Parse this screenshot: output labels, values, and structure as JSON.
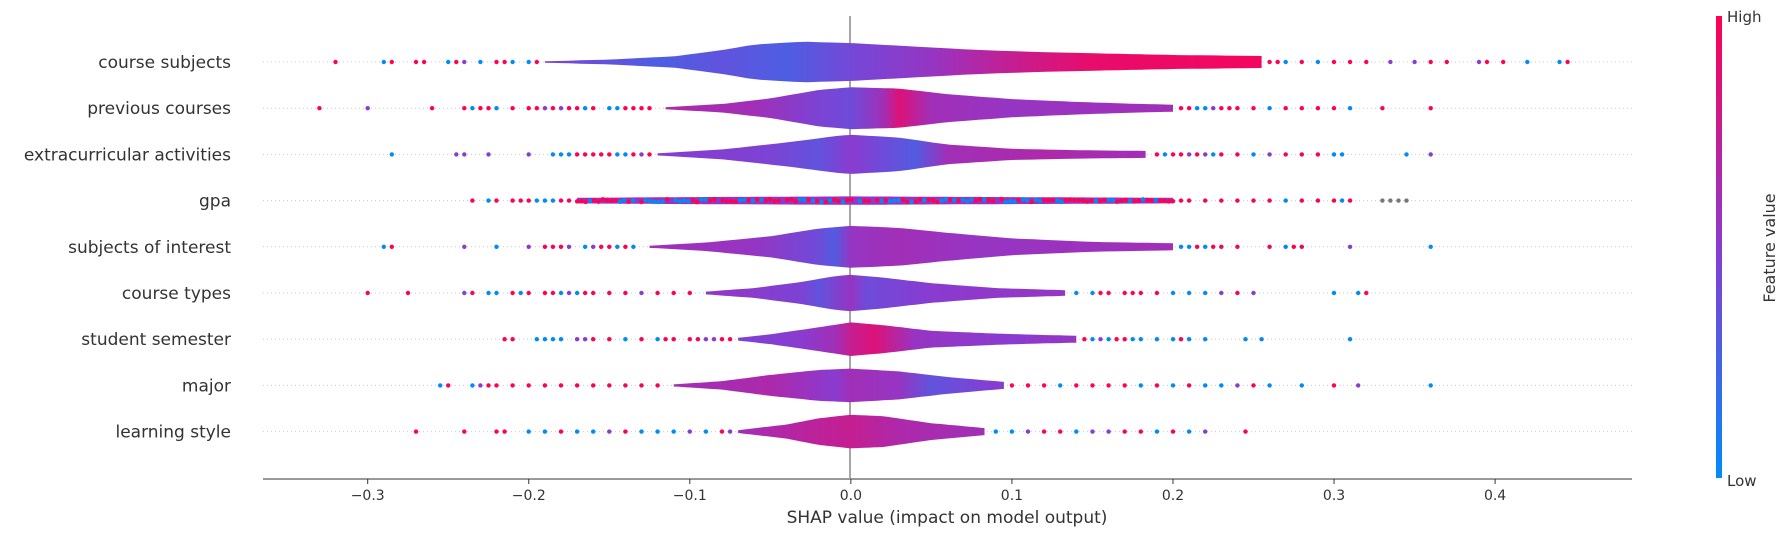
{
  "chart_data": {
    "type": "violin-summary",
    "title": "",
    "xlabel": "SHAP value (impact on model output)",
    "ylabel": "",
    "xlim": [
      -0.365,
      0.485
    ],
    "x_ticks": [
      {
        "value": -0.3,
        "label": "−0.3"
      },
      {
        "value": -0.2,
        "label": "−0.2"
      },
      {
        "value": -0.1,
        "label": "−0.1"
      },
      {
        "value": 0.0,
        "label": "0.0"
      },
      {
        "value": 0.1,
        "label": "0.1"
      },
      {
        "value": 0.2,
        "label": "0.2"
      },
      {
        "value": 0.3,
        "label": "0.3"
      },
      {
        "value": 0.4,
        "label": "0.4"
      }
    ],
    "colorbar": {
      "label": "Feature value",
      "high_label": "High",
      "low_label": "Low",
      "low_color": "#008bfb",
      "high_color": "#ff0052"
    },
    "features": [
      {
        "name": "course subjects",
        "min": -0.32,
        "max": 0.445,
        "violin_start": -0.19,
        "violin_end": 0.255,
        "density": [
          [
            -0.19,
            0.01
          ],
          [
            -0.15,
            0.035
          ],
          [
            -0.11,
            0.08
          ],
          [
            -0.08,
            0.17
          ],
          [
            -0.06,
            0.25
          ],
          [
            -0.03,
            0.29
          ],
          [
            0.0,
            0.27
          ],
          [
            0.04,
            0.22
          ],
          [
            0.08,
            0.17
          ],
          [
            0.12,
            0.14
          ],
          [
            0.16,
            0.12
          ],
          [
            0.2,
            0.1
          ],
          [
            0.24,
            0.09
          ],
          [
            0.255,
            0.085
          ]
        ],
        "color_profile": [
          [
            -0.19,
            0.45
          ],
          [
            -0.12,
            0.28
          ],
          [
            -0.08,
            0.35
          ],
          [
            -0.04,
            0.28
          ],
          [
            0.0,
            0.42
          ],
          [
            0.05,
            0.55
          ],
          [
            0.1,
            0.75
          ],
          [
            0.15,
            0.9
          ],
          [
            0.25,
            0.95
          ]
        ],
        "outliers": [
          -0.32,
          -0.29,
          -0.285,
          -0.27,
          -0.265,
          -0.25,
          -0.245,
          -0.24,
          -0.23,
          -0.22,
          -0.215,
          -0.21,
          -0.2,
          -0.195,
          0.26,
          0.265,
          0.27,
          0.28,
          0.29,
          0.3,
          0.31,
          0.32,
          0.335,
          0.35,
          0.36,
          0.37,
          0.39,
          0.395,
          0.405,
          0.42,
          0.44,
          0.445
        ]
      },
      {
        "name": "previous courses",
        "min": -0.33,
        "max": 0.36,
        "violin_start": -0.115,
        "violin_end": 0.2,
        "density": [
          [
            -0.115,
            0.015
          ],
          [
            -0.08,
            0.06
          ],
          [
            -0.05,
            0.14
          ],
          [
            -0.02,
            0.26
          ],
          [
            0.0,
            0.3
          ],
          [
            0.03,
            0.28
          ],
          [
            0.06,
            0.2
          ],
          [
            0.1,
            0.13
          ],
          [
            0.14,
            0.09
          ],
          [
            0.18,
            0.06
          ],
          [
            0.2,
            0.05
          ]
        ],
        "color_profile": [
          [
            -0.115,
            0.65
          ],
          [
            -0.06,
            0.6
          ],
          [
            -0.02,
            0.45
          ],
          [
            0.0,
            0.4
          ],
          [
            0.02,
            0.6
          ],
          [
            0.03,
            0.85
          ],
          [
            0.05,
            0.6
          ],
          [
            0.1,
            0.55
          ],
          [
            0.2,
            0.6
          ]
        ],
        "outliers": [
          -0.33,
          -0.3,
          -0.26,
          -0.24,
          -0.235,
          -0.23,
          -0.225,
          -0.22,
          -0.21,
          -0.2,
          -0.195,
          -0.19,
          -0.185,
          -0.18,
          -0.175,
          -0.17,
          -0.165,
          -0.16,
          -0.15,
          -0.145,
          -0.14,
          -0.135,
          -0.13,
          -0.125,
          0.205,
          0.21,
          0.215,
          0.22,
          0.225,
          0.23,
          0.235,
          0.24,
          0.25,
          0.26,
          0.27,
          0.28,
          0.29,
          0.3,
          0.31,
          0.33,
          0.36
        ]
      },
      {
        "name": "extracurricular activities",
        "min": -0.285,
        "max": 0.36,
        "violin_start": -0.12,
        "violin_end": 0.183,
        "density": [
          [
            -0.12,
            0.015
          ],
          [
            -0.08,
            0.07
          ],
          [
            -0.04,
            0.17
          ],
          [
            -0.01,
            0.26
          ],
          [
            0.0,
            0.28
          ],
          [
            0.03,
            0.24
          ],
          [
            0.06,
            0.14
          ],
          [
            0.1,
            0.08
          ],
          [
            0.14,
            0.06
          ],
          [
            0.183,
            0.05
          ]
        ],
        "color_profile": [
          [
            -0.12,
            0.5
          ],
          [
            -0.05,
            0.45
          ],
          [
            -0.02,
            0.35
          ],
          [
            0.0,
            0.5
          ],
          [
            0.02,
            0.4
          ],
          [
            0.04,
            0.3
          ],
          [
            0.06,
            0.6
          ],
          [
            0.12,
            0.65
          ],
          [
            0.183,
            0.6
          ]
        ],
        "outliers": [
          -0.285,
          -0.245,
          -0.24,
          -0.225,
          -0.2,
          -0.185,
          -0.18,
          -0.175,
          -0.17,
          -0.165,
          -0.16,
          -0.155,
          -0.15,
          -0.145,
          -0.14,
          -0.135,
          -0.13,
          -0.125,
          0.19,
          0.195,
          0.2,
          0.205,
          0.21,
          0.215,
          0.22,
          0.225,
          0.23,
          0.24,
          0.25,
          0.26,
          0.27,
          0.28,
          0.29,
          0.3,
          0.305,
          0.345,
          0.36
        ]
      },
      {
        "name": "gpa",
        "min": -0.235,
        "max": 0.345,
        "violin_start": -0.17,
        "violin_end": 0.2,
        "density": [
          [
            -0.17,
            0.04
          ],
          [
            -0.1,
            0.05
          ],
          [
            0.0,
            0.06
          ],
          [
            0.1,
            0.05
          ],
          [
            0.2,
            0.04
          ]
        ],
        "color_profile": [
          [
            -0.17,
            0.6
          ],
          [
            0.0,
            0.55
          ],
          [
            0.2,
            0.6
          ]
        ],
        "outliers": [
          -0.235,
          -0.225,
          -0.22,
          -0.21,
          -0.205,
          -0.2,
          -0.195,
          -0.19,
          -0.185,
          -0.18,
          -0.175,
          0.205,
          0.21,
          0.22,
          0.23,
          0.24,
          0.25,
          0.26,
          0.27,
          0.28,
          0.29,
          0.3,
          0.305,
          0.31,
          0.33,
          0.335,
          0.34,
          0.345
        ]
      },
      {
        "name": "subjects of interest",
        "min": -0.29,
        "max": 0.36,
        "violin_start": -0.125,
        "violin_end": 0.2,
        "density": [
          [
            -0.125,
            0.015
          ],
          [
            -0.09,
            0.06
          ],
          [
            -0.05,
            0.15
          ],
          [
            -0.02,
            0.26
          ],
          [
            0.0,
            0.3
          ],
          [
            0.03,
            0.27
          ],
          [
            0.06,
            0.2
          ],
          [
            0.1,
            0.12
          ],
          [
            0.15,
            0.07
          ],
          [
            0.2,
            0.05
          ]
        ],
        "color_profile": [
          [
            -0.125,
            0.6
          ],
          [
            -0.06,
            0.55
          ],
          [
            -0.02,
            0.4
          ],
          [
            -0.01,
            0.3
          ],
          [
            0.0,
            0.55
          ],
          [
            0.03,
            0.6
          ],
          [
            0.08,
            0.55
          ],
          [
            0.2,
            0.6
          ]
        ],
        "outliers": [
          -0.29,
          -0.285,
          -0.24,
          -0.22,
          -0.2,
          -0.19,
          -0.185,
          -0.18,
          -0.175,
          -0.165,
          -0.16,
          -0.155,
          -0.15,
          -0.145,
          -0.14,
          -0.135,
          0.205,
          0.21,
          0.215,
          0.22,
          0.225,
          0.23,
          0.24,
          0.26,
          0.27,
          0.275,
          0.28,
          0.31,
          0.36
        ]
      },
      {
        "name": "course types",
        "min": -0.3,
        "max": 0.32,
        "violin_start": -0.09,
        "violin_end": 0.133,
        "density": [
          [
            -0.09,
            0.02
          ],
          [
            -0.06,
            0.07
          ],
          [
            -0.03,
            0.16
          ],
          [
            -0.01,
            0.24
          ],
          [
            0.0,
            0.26
          ],
          [
            0.02,
            0.22
          ],
          [
            0.05,
            0.14
          ],
          [
            0.09,
            0.07
          ],
          [
            0.133,
            0.04
          ]
        ],
        "color_profile": [
          [
            -0.09,
            0.55
          ],
          [
            -0.03,
            0.45
          ],
          [
            -0.02,
            0.35
          ],
          [
            0.0,
            0.55
          ],
          [
            0.01,
            0.4
          ],
          [
            0.05,
            0.5
          ],
          [
            0.133,
            0.55
          ]
        ],
        "outliers": [
          -0.3,
          -0.275,
          -0.24,
          -0.235,
          -0.225,
          -0.22,
          -0.21,
          -0.205,
          -0.2,
          -0.19,
          -0.185,
          -0.18,
          -0.175,
          -0.17,
          -0.165,
          -0.16,
          -0.15,
          -0.14,
          -0.13,
          -0.12,
          -0.11,
          -0.1,
          0.14,
          0.15,
          0.155,
          0.16,
          0.17,
          0.175,
          0.18,
          0.19,
          0.2,
          0.21,
          0.22,
          0.23,
          0.24,
          0.25,
          0.3,
          0.315,
          0.32
        ]
      },
      {
        "name": "student semester",
        "min": -0.215,
        "max": 0.31,
        "violin_start": -0.07,
        "violin_end": 0.14,
        "density": [
          [
            -0.07,
            0.02
          ],
          [
            -0.05,
            0.07
          ],
          [
            -0.02,
            0.17
          ],
          [
            0.0,
            0.24
          ],
          [
            0.02,
            0.2
          ],
          [
            0.05,
            0.12
          ],
          [
            0.09,
            0.08
          ],
          [
            0.12,
            0.06
          ],
          [
            0.14,
            0.05
          ]
        ],
        "color_profile": [
          [
            -0.07,
            0.45
          ],
          [
            -0.03,
            0.5
          ],
          [
            -0.01,
            0.6
          ],
          [
            0.0,
            0.75
          ],
          [
            0.015,
            0.85
          ],
          [
            0.04,
            0.55
          ],
          [
            0.1,
            0.5
          ],
          [
            0.14,
            0.55
          ]
        ],
        "outliers": [
          -0.215,
          -0.21,
          -0.195,
          -0.19,
          -0.185,
          -0.18,
          -0.17,
          -0.165,
          -0.16,
          -0.15,
          -0.14,
          -0.13,
          -0.12,
          -0.115,
          -0.11,
          -0.1,
          -0.095,
          -0.09,
          -0.085,
          -0.08,
          -0.075,
          0.145,
          0.15,
          0.155,
          0.16,
          0.165,
          0.17,
          0.175,
          0.18,
          0.19,
          0.2,
          0.205,
          0.21,
          0.22,
          0.245,
          0.255,
          0.31
        ]
      },
      {
        "name": "major",
        "min": -0.255,
        "max": 0.36,
        "violin_start": -0.11,
        "violin_end": 0.095,
        "density": [
          [
            -0.11,
            0.015
          ],
          [
            -0.08,
            0.06
          ],
          [
            -0.05,
            0.15
          ],
          [
            -0.02,
            0.22
          ],
          [
            0.0,
            0.24
          ],
          [
            0.03,
            0.2
          ],
          [
            0.06,
            0.12
          ],
          [
            0.095,
            0.05
          ]
        ],
        "color_profile": [
          [
            -0.11,
            0.6
          ],
          [
            -0.05,
            0.65
          ],
          [
            -0.01,
            0.5
          ],
          [
            0.0,
            0.6
          ],
          [
            0.03,
            0.55
          ],
          [
            0.05,
            0.35
          ],
          [
            0.095,
            0.5
          ]
        ],
        "outliers": [
          -0.255,
          -0.25,
          -0.235,
          -0.23,
          -0.225,
          -0.22,
          -0.21,
          -0.2,
          -0.19,
          -0.18,
          -0.17,
          -0.16,
          -0.15,
          -0.14,
          -0.13,
          -0.12,
          0.1,
          0.11,
          0.12,
          0.13,
          0.14,
          0.15,
          0.16,
          0.17,
          0.18,
          0.19,
          0.2,
          0.21,
          0.22,
          0.23,
          0.24,
          0.25,
          0.26,
          0.28,
          0.3,
          0.315,
          0.36
        ]
      },
      {
        "name": "learning style",
        "min": -0.27,
        "max": 0.245,
        "violin_start": -0.07,
        "violin_end": 0.083,
        "density": [
          [
            -0.07,
            0.02
          ],
          [
            -0.04,
            0.1
          ],
          [
            -0.02,
            0.19
          ],
          [
            0.0,
            0.24
          ],
          [
            0.02,
            0.22
          ],
          [
            0.05,
            0.12
          ],
          [
            0.083,
            0.05
          ]
        ],
        "color_profile": [
          [
            -0.07,
            0.6
          ],
          [
            -0.03,
            0.7
          ],
          [
            0.0,
            0.75
          ],
          [
            0.03,
            0.65
          ],
          [
            0.083,
            0.6
          ]
        ],
        "outliers": [
          -0.27,
          -0.24,
          -0.22,
          -0.215,
          -0.2,
          -0.19,
          -0.18,
          -0.17,
          -0.16,
          -0.15,
          -0.14,
          -0.13,
          -0.12,
          -0.11,
          -0.1,
          -0.09,
          -0.08,
          -0.075,
          0.09,
          0.1,
          0.11,
          0.12,
          0.13,
          0.14,
          0.15,
          0.16,
          0.17,
          0.18,
          0.19,
          0.2,
          0.21,
          0.22,
          0.245
        ]
      }
    ]
  }
}
